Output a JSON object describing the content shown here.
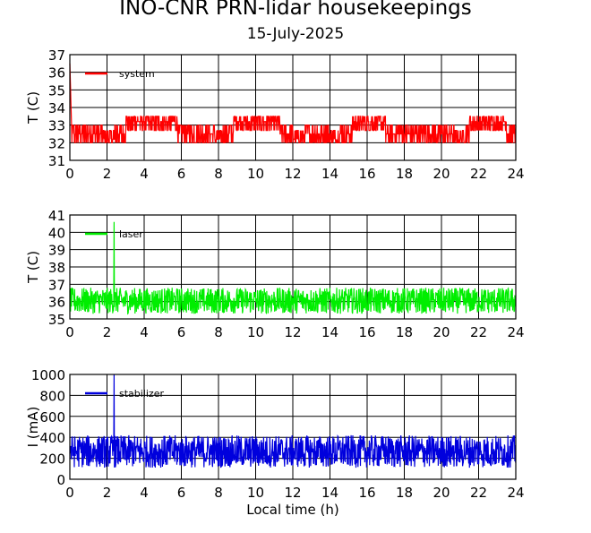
{
  "figure": {
    "title": "INO-CNR PRN-lidar housekeepings",
    "subtitle": "15-July-2025"
  },
  "chart_data": [
    {
      "type": "line",
      "xlabel": "",
      "ylabel": "T (C)",
      "xlim": [
        0,
        24
      ],
      "ylim": [
        31,
        37
      ],
      "xticks": [
        "0",
        "2",
        "4",
        "6",
        "8",
        "10",
        "12",
        "14",
        "16",
        "18",
        "20",
        "22",
        "24"
      ],
      "yticks": [
        "31",
        "32",
        "33",
        "34",
        "35",
        "36",
        "37"
      ],
      "grid": true,
      "legend_position": "top-left",
      "series": [
        {
          "name": "system",
          "color": "#ff0000",
          "style": "noisy_band",
          "base": 32.5,
          "band": [
            32.0,
            33.5
          ],
          "start_transient": [
            36.5,
            33.5
          ],
          "warm_intervals": [
            [
              3.0,
              5.8
            ],
            [
              8.8,
              11.3
            ],
            [
              15.2,
              17.0
            ],
            [
              21.5,
              23.5
            ]
          ],
          "cool_intervals": [
            [
              1.8,
              2.4
            ],
            [
              7.8,
              8.2
            ],
            [
              12.0,
              12.6
            ],
            [
              14.0,
              14.5
            ],
            [
              20.7,
              21.3
            ]
          ]
        }
      ]
    },
    {
      "type": "line",
      "xlabel": "",
      "ylabel": "T (C)",
      "xlim": [
        0,
        24
      ],
      "ylim": [
        35,
        41
      ],
      "xticks": [
        "0",
        "2",
        "4",
        "6",
        "8",
        "10",
        "12",
        "14",
        "16",
        "18",
        "20",
        "22",
        "24"
      ],
      "yticks": [
        "35",
        "36",
        "37",
        "38",
        "39",
        "40",
        "41"
      ],
      "grid": true,
      "legend_position": "top-left",
      "series": [
        {
          "name": "laser",
          "color": "#00ee00",
          "style": "noisy_band",
          "base": 36.0,
          "band": [
            35.3,
            36.8
          ],
          "spike": {
            "x": 2.38,
            "y": 40.6
          }
        }
      ]
    },
    {
      "type": "line",
      "xlabel": "Local time (h)",
      "ylabel": "I (mA)",
      "xlim": [
        0,
        24
      ],
      "ylim": [
        0,
        1000
      ],
      "xticks": [
        "0",
        "2",
        "4",
        "6",
        "8",
        "10",
        "12",
        "14",
        "16",
        "18",
        "20",
        "22",
        "24"
      ],
      "yticks": [
        "0",
        "200",
        "400",
        "600",
        "800",
        "1000"
      ],
      "grid": true,
      "legend_position": "top-left",
      "series": [
        {
          "name": "stabilizer",
          "color": "#0000dd",
          "style": "noisy_band",
          "base": 270,
          "band": [
            110,
            420
          ],
          "spike": {
            "x": 2.38,
            "y": 1000
          }
        }
      ]
    }
  ]
}
